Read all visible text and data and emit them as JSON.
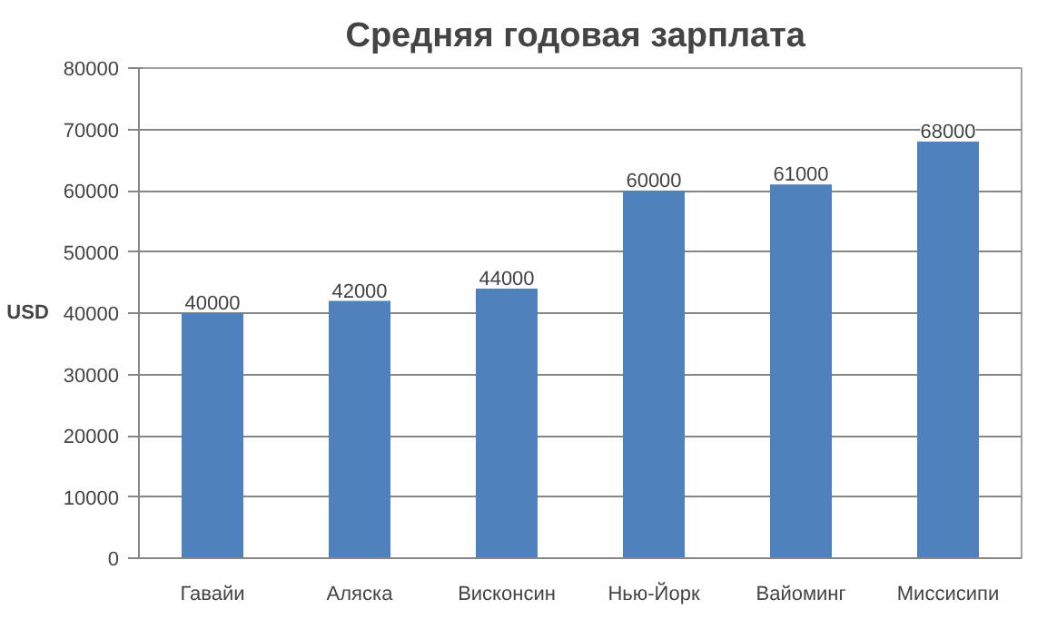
{
  "chart_data": {
    "type": "bar",
    "title": "Средняя  годовая зарплата",
    "ylabel": "USD",
    "categories": [
      "Гавайи",
      "Аляска",
      "Висконсин",
      "Нью-Йорк",
      "Вайоминг",
      "Миссисипи"
    ],
    "values": [
      40000,
      42000,
      44000,
      60000,
      61000,
      68000
    ],
    "color": "#4f81bd",
    "ylim": [
      0,
      80000
    ],
    "yticks": [
      0,
      10000,
      20000,
      30000,
      40000,
      50000,
      60000,
      70000,
      80000
    ],
    "grid": "y",
    "data_labels": true
  }
}
